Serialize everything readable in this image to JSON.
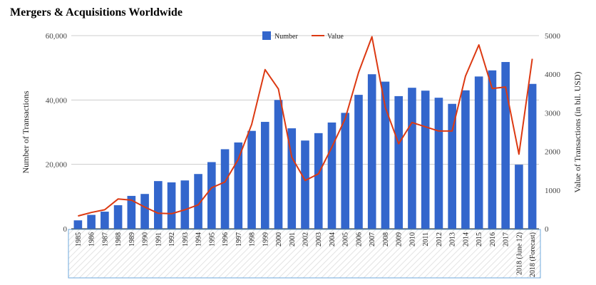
{
  "chart_data": {
    "type": "bar",
    "title": "Mergers & Acquisitions Worldwide",
    "categories": [
      "1985",
      "1986",
      "1987",
      "1988",
      "1989",
      "1990",
      "1991",
      "1992",
      "1993",
      "1994",
      "1995",
      "1996",
      "1997",
      "1998",
      "1999",
      "2000",
      "2001",
      "2002",
      "2003",
      "2004",
      "2005",
      "2006",
      "2007",
      "2008",
      "2009",
      "2010",
      "2011",
      "2012",
      "2013",
      "2014",
      "2015",
      "2016",
      "2017",
      "2018 (June 12)",
      "2018 (Forecast)"
    ],
    "series": [
      {
        "name": "Number",
        "type": "bar",
        "axis": "left",
        "color": "#3366cc",
        "values": [
          2600,
          4300,
          5300,
          7300,
          10200,
          10800,
          14800,
          14400,
          15000,
          17000,
          20700,
          24700,
          26800,
          30400,
          33200,
          40000,
          31200,
          27400,
          29700,
          33000,
          36000,
          41600,
          48000,
          45700,
          41200,
          43800,
          42900,
          40700,
          38800,
          43000,
          47300,
          49200,
          51800,
          19900,
          45000
        ]
      },
      {
        "name": "Value",
        "type": "line",
        "axis": "right",
        "color": "#dc3912",
        "values": [
          330,
          420,
          490,
          770,
          740,
          560,
          400,
          390,
          490,
          620,
          1060,
          1210,
          1800,
          2700,
          4120,
          3620,
          1850,
          1250,
          1420,
          2110,
          2850,
          4050,
          4970,
          3140,
          2200,
          2750,
          2640,
          2530,
          2530,
          3950,
          4760,
          3630,
          3670,
          1930,
          4400
        ]
      }
    ],
    "ylabel": "Number of Transactions",
    "ylabel_right": "Value of Transactions (in bil. USD)",
    "ylim": [
      0,
      60000
    ],
    "ylim_right": [
      0,
      5000
    ],
    "yticks": [
      "0",
      "20,000",
      "40,000",
      "60,000"
    ],
    "yticks_right": [
      "0",
      "1000",
      "2000",
      "3000",
      "4000",
      "5000"
    ],
    "grid": true,
    "legend_position": "top-center"
  }
}
